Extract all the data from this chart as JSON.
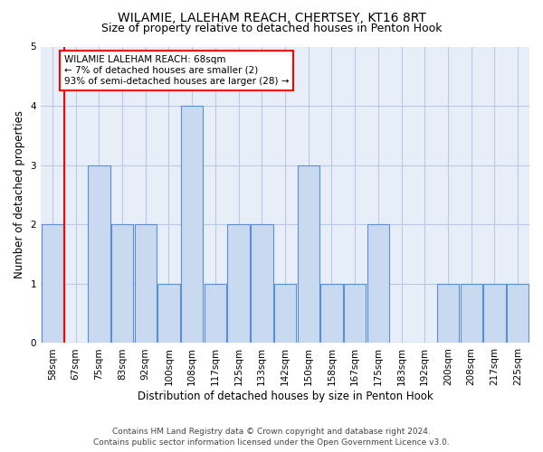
{
  "title": "WILAMIE, LALEHAM REACH, CHERTSEY, KT16 8RT",
  "subtitle": "Size of property relative to detached houses in Penton Hook",
  "xlabel": "Distribution of detached houses by size in Penton Hook",
  "ylabel": "Number of detached properties",
  "categories": [
    "58sqm",
    "67sqm",
    "75sqm",
    "83sqm",
    "92sqm",
    "100sqm",
    "108sqm",
    "117sqm",
    "125sqm",
    "133sqm",
    "142sqm",
    "150sqm",
    "158sqm",
    "167sqm",
    "175sqm",
    "183sqm",
    "192sqm",
    "200sqm",
    "208sqm",
    "217sqm",
    "225sqm"
  ],
  "values": [
    2,
    0,
    3,
    2,
    2,
    1,
    4,
    1,
    2,
    2,
    1,
    3,
    1,
    1,
    2,
    0,
    0,
    1,
    1,
    1,
    1
  ],
  "highlight_index": 0,
  "bar_color": "#c9d9f0",
  "bar_edge_color": "#5b8fd4",
  "highlight_bar_color": "#c9d9f0",
  "grid_color": "#b8c8e8",
  "background_color": "#e8eef8",
  "red_line_x": 0.5,
  "ylim": [
    0,
    5
  ],
  "yticks": [
    0,
    1,
    2,
    3,
    4,
    5
  ],
  "annotation_title": "WILAMIE LALEHAM REACH: 68sqm",
  "annotation_line1": "← 7% of detached houses are smaller (2)",
  "annotation_line2": "93% of semi-detached houses are larger (28) →",
  "footer_line1": "Contains HM Land Registry data © Crown copyright and database right 2024.",
  "footer_line2": "Contains public sector information licensed under the Open Government Licence v3.0.",
  "title_fontsize": 10,
  "subtitle_fontsize": 9,
  "axis_label_fontsize": 8.5,
  "tick_fontsize": 7.5,
  "annotation_fontsize": 7.5,
  "footer_fontsize": 6.5
}
